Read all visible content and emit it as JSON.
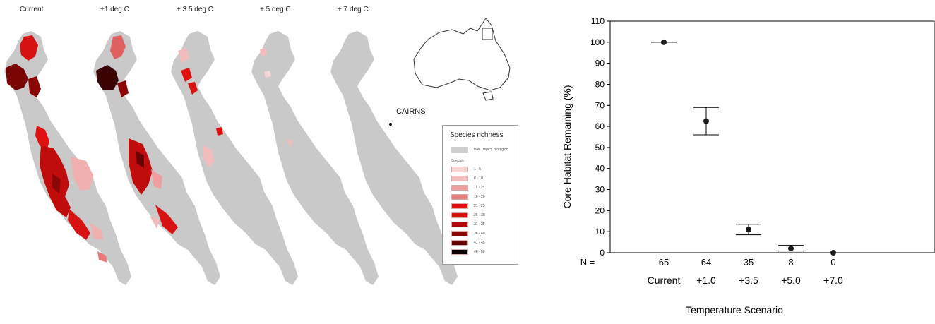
{
  "maps": {
    "titles": [
      "Current",
      "+1 deg C",
      "+ 3.5 deg C",
      "+ 5 deg C",
      "+ 7 deg C"
    ],
    "city_label": "CAIRNS",
    "legend": {
      "title": "Species richness",
      "bioregion_label": "Wet Tropics Bioregion",
      "bioregion_color": "#cfcfcf",
      "species_label": "Species",
      "classes": [
        {
          "label": "1 - 5",
          "color": "#f6d6d6"
        },
        {
          "label": "6 - 10",
          "color": "#f3bcbc"
        },
        {
          "label": "11 - 15",
          "color": "#ee9f9f"
        },
        {
          "label": "16 - 20",
          "color": "#e97a7a"
        },
        {
          "label": "21 - 25",
          "color": "#e01010"
        },
        {
          "label": "26 - 30",
          "color": "#d00f0f"
        },
        {
          "label": "31 - 35",
          "color": "#b00a0a"
        },
        {
          "label": "36 - 40",
          "color": "#8c0606"
        },
        {
          "label": "41 - 45",
          "color": "#640303"
        },
        {
          "label": "46 - 50",
          "color": "#000000"
        }
      ]
    }
  },
  "chart_data": {
    "type": "scatter",
    "ylabel": "Core Habitat Remaining (%)",
    "xlabel": "Temperature Scenario",
    "categories": [
      "Current",
      "+1.0",
      "+3.5",
      "+5.0",
      "+7.0"
    ],
    "n_label": "N =",
    "n_values": [
      "65",
      "64",
      "35",
      "8",
      "0"
    ],
    "values": [
      100,
      62.5,
      11,
      2,
      0
    ],
    "error_low": [
      100,
      56,
      8.5,
      0.8,
      0
    ],
    "error_high": [
      100,
      69,
      13.5,
      3.5,
      0
    ],
    "ylim": [
      0,
      110
    ],
    "yticks": [
      0,
      10,
      20,
      30,
      40,
      50,
      60,
      70,
      80,
      90,
      100,
      110
    ],
    "grid": false,
    "marker_color": "#1a1a1a"
  }
}
